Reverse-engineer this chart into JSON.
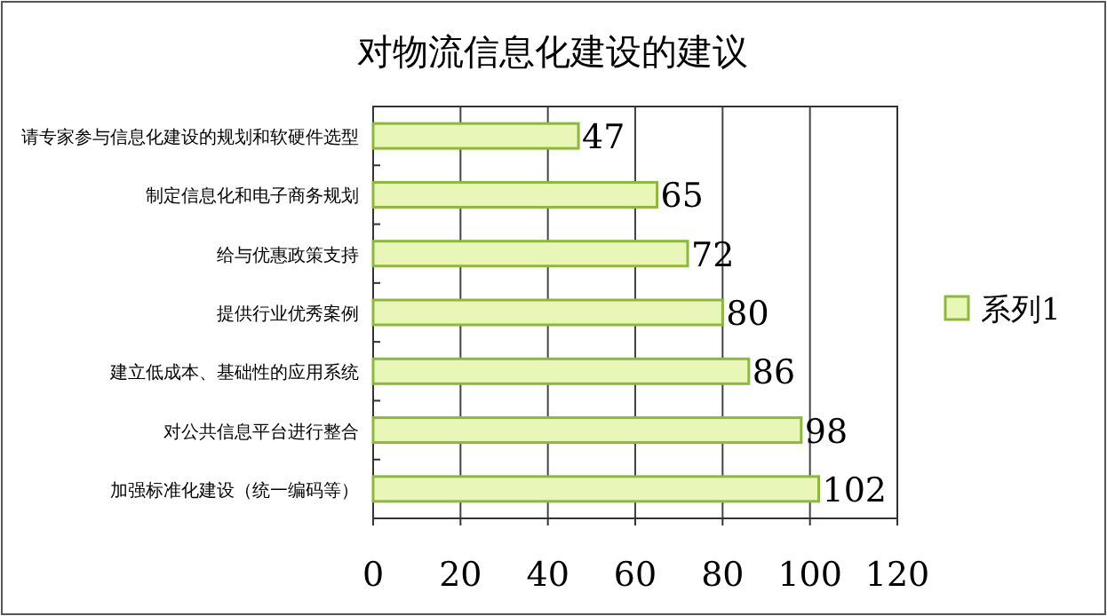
{
  "chart_data": {
    "type": "bar",
    "orientation": "horizontal",
    "title": "对物流信息化建设的建议",
    "categories": [
      "请专家参与信息化建设的规划和软硬件选型",
      "制定信息化和电子商务规划",
      "给与优惠政策支持",
      "提供行业优秀案例",
      "建立低成本、基础性的应用系统",
      "对公共信息平台进行整合",
      "加强标准化建设（统一编码等）"
    ],
    "series": [
      {
        "name": "系列1",
        "color": "#e8f7b8",
        "values": [
          47,
          65,
          72,
          80,
          86,
          98,
          102
        ]
      }
    ],
    "xlim": [
      0,
      120
    ],
    "xticks": [
      0,
      20,
      40,
      60,
      80,
      100,
      120
    ],
    "grid": "x",
    "legend": "right",
    "data_labels": true
  }
}
